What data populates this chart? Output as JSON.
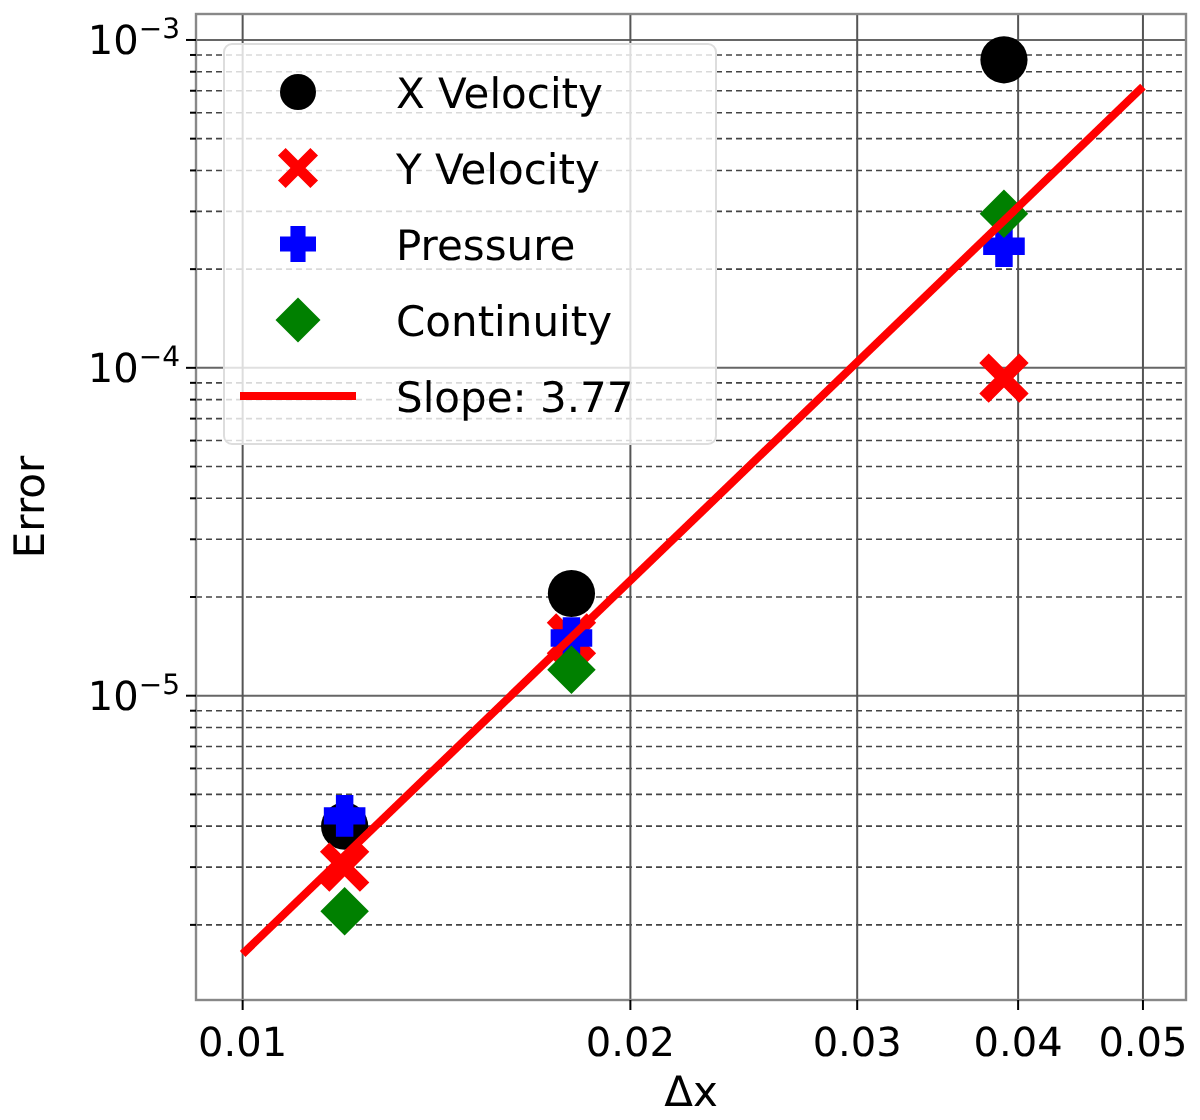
{
  "chart_data": {
    "type": "scatter",
    "xlabel": "Δx",
    "ylabel": "Error",
    "log": "xy",
    "grid": true,
    "legend": "top left",
    "xlim": [
      0.0092,
      0.054
    ],
    "xticks": [
      0.01,
      0.02,
      0.03,
      0.04,
      0.05
    ],
    "ylim": [
      1.18e-06,
      0.0012
    ],
    "yticks": [
      {
        "value": 2e-06,
        "label": null
      },
      {
        "value": 3e-06,
        "label": null
      },
      {
        "value": 4e-06,
        "label": null
      },
      {
        "value": 5e-06,
        "label": null
      },
      {
        "value": 6e-06,
        "label": null
      },
      {
        "value": 7e-06,
        "label": null
      },
      {
        "value": 8e-06,
        "label": null
      },
      {
        "value": 9e-06,
        "label": null
      },
      {
        "value": 1e-05,
        "label": "10$^{−5}$"
      },
      {
        "value": 2e-05,
        "label": null
      },
      {
        "value": 3e-05,
        "label": null
      },
      {
        "value": 4e-05,
        "label": null
      },
      {
        "value": 5e-05,
        "label": null
      },
      {
        "value": 6e-05,
        "label": null
      },
      {
        "value": 7e-05,
        "label": null
      },
      {
        "value": 8e-05,
        "label": null
      },
      {
        "value": 9e-05,
        "label": null
      },
      {
        "value": 0.0001,
        "label": "10$^{−4}$"
      },
      {
        "value": 0.0002,
        "label": null
      },
      {
        "value": 0.0003,
        "label": null
      },
      {
        "value": 0.0004,
        "label": null
      },
      {
        "value": 0.0005,
        "label": null
      },
      {
        "value": 0.0006,
        "label": null
      },
      {
        "value": 0.0007,
        "label": null
      },
      {
        "value": 0.0008,
        "label": null
      },
      {
        "value": 0.0009,
        "label": null
      },
      {
        "value": 0.001,
        "label": "10$^{−3}$"
      }
    ],
    "x": [
      0.012,
      0.018,
      0.039
    ],
    "series": [
      {
        "name": "X Velocity",
        "color": "#000000",
        "marker": "circle",
        "values": [
          4e-06,
          2.05e-05,
          0.00087
        ]
      },
      {
        "name": "Y Velocity",
        "color": "#ff0000",
        "marker": "cross",
        "values": [
          3e-06,
          1.5e-05,
          9.3e-05
        ]
      },
      {
        "name": "Pressure",
        "color": "#0000ff",
        "marker": "plus",
        "values": [
          4.3e-06,
          1.5e-05,
          0.000235
        ]
      },
      {
        "name": "Continuity",
        "color": "#008000",
        "marker": "diamond",
        "values": [
          2.2e-06,
          1.2e-05,
          0.000295
        ]
      },
      {
        "name": "Slope: 3.77",
        "type": "line",
        "color": "#ff0000",
        "marker": "none",
        "line_style": "solid",
        "x": [
          0.01,
          0.05
        ],
        "values": [
          1.63e-06,
          0.00072
        ]
      }
    ]
  }
}
